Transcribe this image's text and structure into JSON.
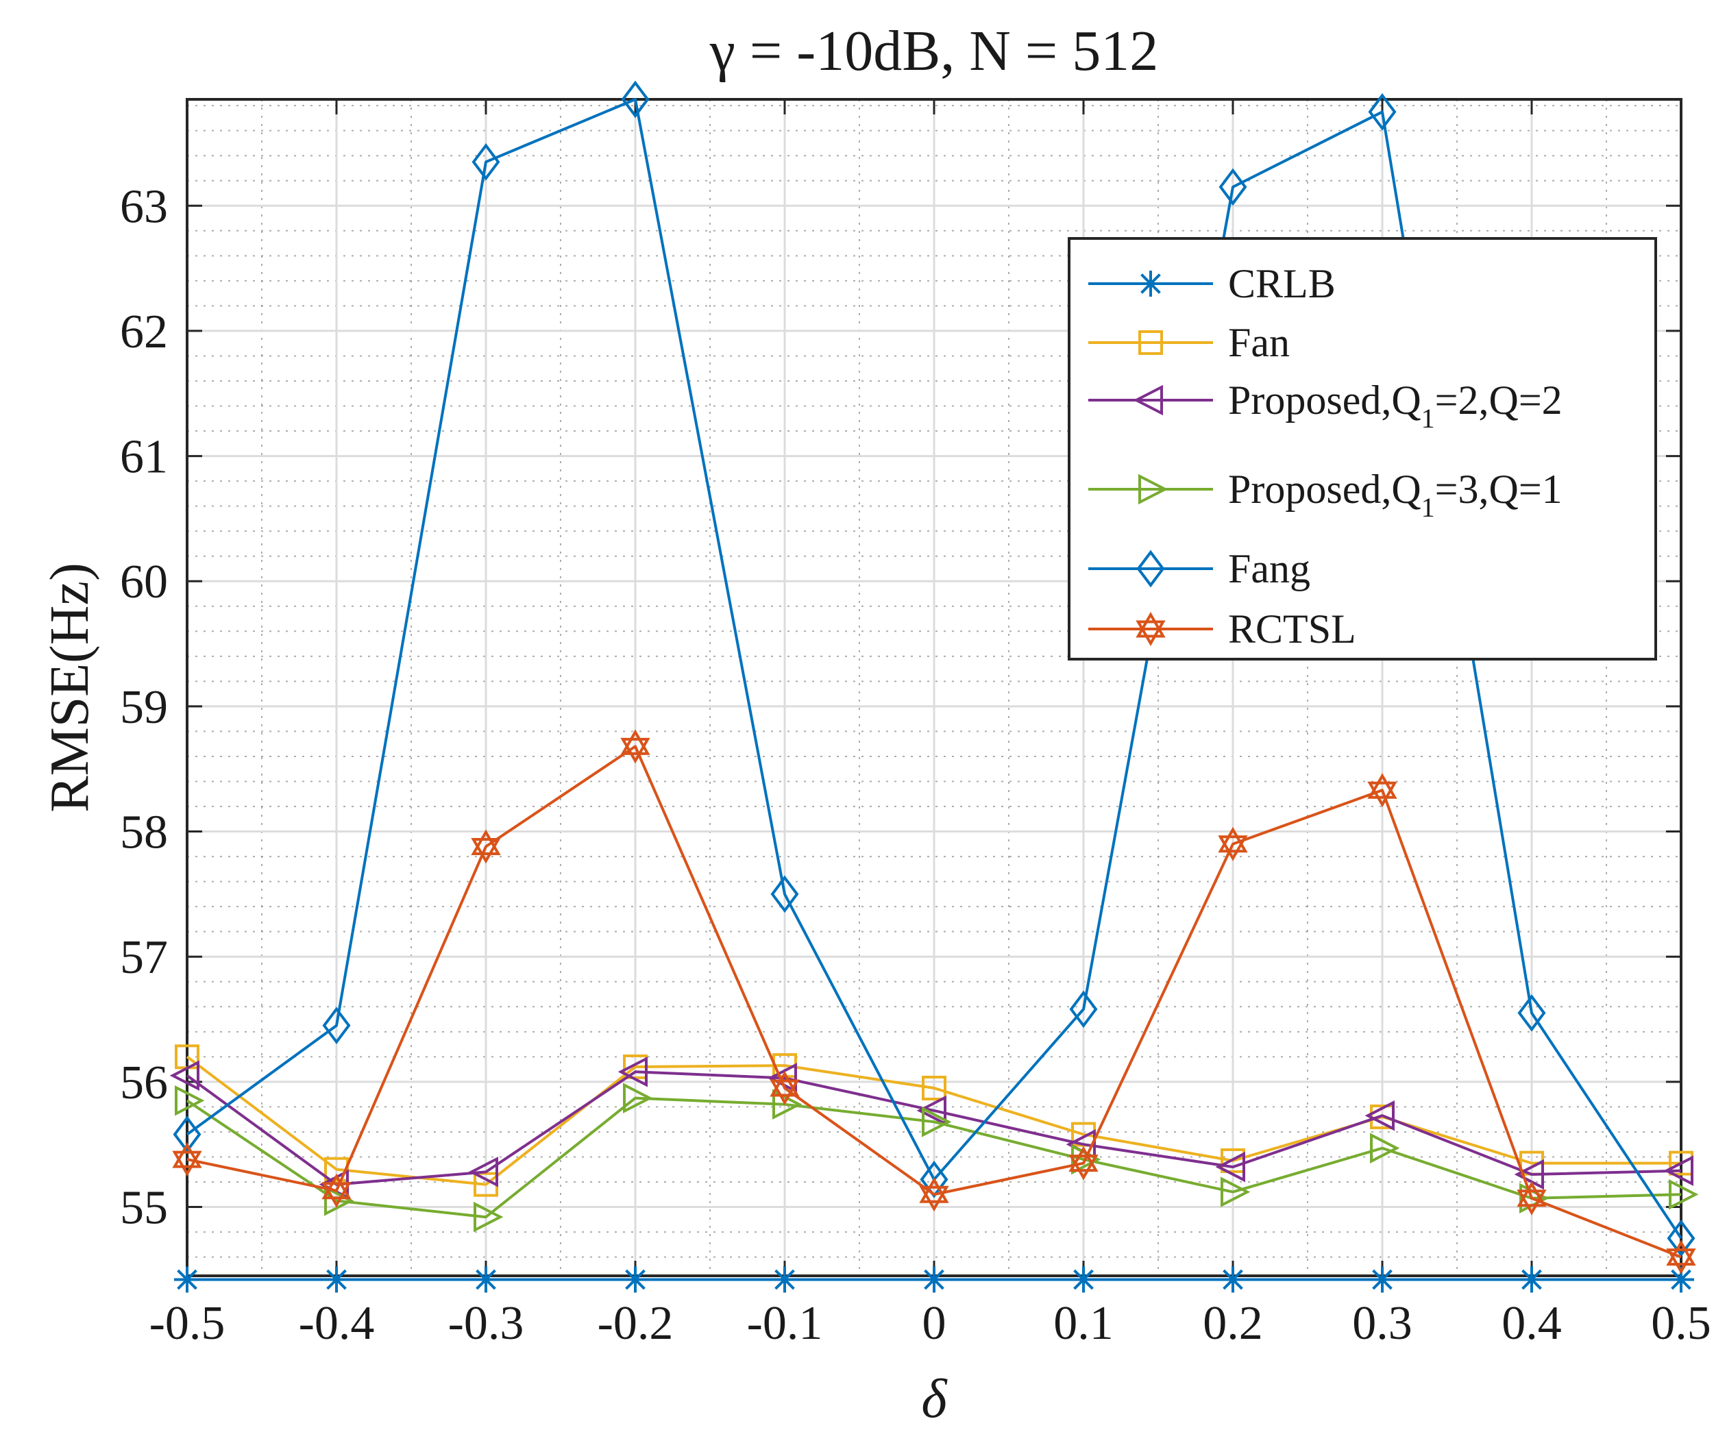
{
  "chart_data": {
    "type": "line",
    "title": "γ = -10dB, N = 512",
    "xlabel": "δ",
    "ylabel": "RMSE(Hz)",
    "x": [
      -0.5,
      -0.4,
      -0.3,
      -0.2,
      -0.1,
      0,
      0.1,
      0.2,
      0.3,
      0.4,
      0.5
    ],
    "x_tick_labels": [
      "-0.5",
      "-0.4",
      "-0.3",
      "-0.2",
      "-0.1",
      "0",
      "0.1",
      "0.2",
      "0.3",
      "0.4",
      "0.5"
    ],
    "y_ticks": [
      55,
      56,
      57,
      58,
      59,
      60,
      61,
      62,
      63
    ],
    "y_tick_labels": [
      "55",
      "56",
      "57",
      "58",
      "59",
      "60",
      "61",
      "62",
      "63"
    ],
    "xlim": [
      -0.5,
      0.5
    ],
    "ylim": [
      54.45,
      63.85
    ],
    "grid": true,
    "minor_grid": true,
    "legend_position": "top-right",
    "series": [
      {
        "name": "CRLB",
        "color": "#0072BD",
        "marker": "asterisk",
        "values": [
          54.42,
          54.42,
          54.42,
          54.42,
          54.42,
          54.42,
          54.42,
          54.42,
          54.42,
          54.42,
          54.42
        ]
      },
      {
        "name": "Fan",
        "color": "#EDB120",
        "marker": "square",
        "values": [
          56.2,
          55.3,
          55.18,
          56.12,
          56.13,
          55.95,
          55.58,
          55.37,
          55.72,
          55.35,
          55.35
        ]
      },
      {
        "name": "Proposed,Q1=2,Q=2",
        "label_main": "Proposed,Q",
        "label_sub": "1",
        "label_rest": "=2,Q=2",
        "color": "#7E2F8E",
        "marker": "triangle-left",
        "values": [
          56.05,
          55.18,
          55.28,
          56.08,
          56.03,
          55.77,
          55.5,
          55.32,
          55.73,
          55.26,
          55.29
        ]
      },
      {
        "name": "Proposed,Q1=3,Q=1",
        "label_main": "Proposed,Q",
        "label_sub": "1",
        "label_rest": "=3,Q=1",
        "color": "#77AC30",
        "marker": "triangle-right",
        "values": [
          55.85,
          55.05,
          54.92,
          55.87,
          55.82,
          55.68,
          55.38,
          55.12,
          55.47,
          55.07,
          55.1
        ]
      },
      {
        "name": "Fang",
        "color": "#0072BD",
        "marker": "diamond",
        "values": [
          55.58,
          56.45,
          63.35,
          63.85,
          57.5,
          55.22,
          56.58,
          63.15,
          63.75,
          56.55,
          54.75
        ]
      },
      {
        "name": "RCTSL",
        "color": "#D95319",
        "marker": "hexagram",
        "values": [
          55.38,
          55.13,
          57.88,
          58.68,
          55.95,
          55.1,
          55.35,
          57.9,
          58.33,
          55.07,
          54.6
        ]
      }
    ]
  }
}
